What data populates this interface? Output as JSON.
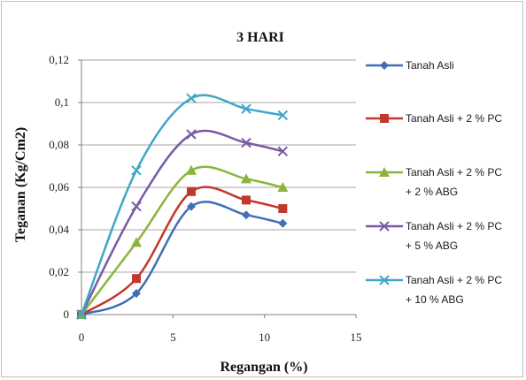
{
  "chart_data": {
    "type": "line",
    "title": "3 HARI",
    "xlabel": "Regangan (%)",
    "ylabel": "Teganan (Kg/Cm2)",
    "xlim": [
      0,
      15
    ],
    "ylim": [
      0,
      0.12
    ],
    "x_ticks": [
      "0",
      "5",
      "10",
      "15"
    ],
    "y_ticks": [
      "0",
      "0,02",
      "0,04",
      "0,06",
      "0,08",
      "0,1",
      "0,12"
    ],
    "grid": "horizontal",
    "legend_position": "right",
    "x": [
      0,
      3,
      6,
      9,
      11
    ],
    "series": [
      {
        "name": "Tanah Asli",
        "name_lines": [
          "Tanah Asli"
        ],
        "color": "#3f6fb4",
        "marker": "diamond",
        "values": [
          0,
          0.01,
          0.051,
          0.047,
          0.043
        ]
      },
      {
        "name": "Tanah Asli + 2 % PC",
        "name_lines": [
          "Tanah Asli + 2 % PC"
        ],
        "color": "#c0392b",
        "marker": "square",
        "values": [
          0,
          0.017,
          0.058,
          0.054,
          0.05
        ]
      },
      {
        "name": "Tanah Asli + 2 % PC + 2 % ABG",
        "name_lines": [
          "Tanah Asli + 2 % PC",
          "+ 2 % ABG"
        ],
        "color": "#8ab43c",
        "marker": "triangle",
        "values": [
          0,
          0.034,
          0.068,
          0.064,
          0.06
        ]
      },
      {
        "name": "Tanah Asli + 2 % PC + 5 % ABG",
        "name_lines": [
          "Tanah Asli + 2 % PC",
          "+ 5 % ABG"
        ],
        "color": "#7a5aa6",
        "marker": "x",
        "values": [
          0,
          0.051,
          0.085,
          0.081,
          0.077
        ]
      },
      {
        "name": "Tanah Asli + 2 % PC + 10 % ABG",
        "name_lines": [
          "Tanah Asli + 2 % PC",
          "+ 10 % ABG"
        ],
        "color": "#3fa6c8",
        "marker": "x",
        "values": [
          0,
          0.068,
          0.102,
          0.097,
          0.094
        ]
      }
    ]
  }
}
